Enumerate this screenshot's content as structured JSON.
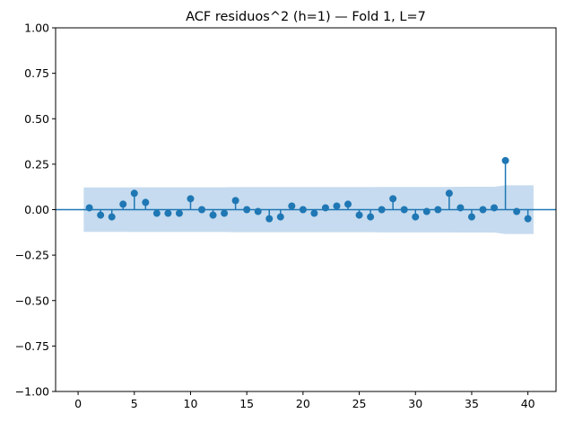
{
  "chart_data": {
    "type": "stem",
    "title": "ACF residuos^2 (h=1) — Fold 1, L=7",
    "xlabel": "",
    "ylabel": "",
    "xlim": [
      -2,
      42.5
    ],
    "ylim": [
      -1.0,
      1.0
    ],
    "xticks": [
      0,
      5,
      10,
      15,
      20,
      25,
      30,
      35,
      40
    ],
    "yticks": [
      -1.0,
      -0.75,
      -0.5,
      -0.25,
      0.0,
      0.25,
      0.5,
      0.75,
      1.0
    ],
    "ytick_labels": [
      "−1.00",
      "−0.75",
      "−0.50",
      "−0.25",
      "0.00",
      "0.25",
      "0.50",
      "0.75",
      "1.00"
    ],
    "grid": false,
    "lags": [
      1,
      2,
      3,
      4,
      5,
      6,
      7,
      8,
      9,
      10,
      11,
      12,
      13,
      14,
      15,
      16,
      17,
      18,
      19,
      20,
      21,
      22,
      23,
      24,
      25,
      26,
      27,
      28,
      29,
      30,
      31,
      32,
      33,
      34,
      35,
      36,
      37,
      38,
      39,
      40
    ],
    "values": [
      0.01,
      -0.03,
      -0.04,
      0.03,
      0.09,
      0.04,
      -0.02,
      -0.02,
      -0.02,
      0.06,
      0.0,
      -0.03,
      -0.02,
      0.05,
      0.0,
      -0.01,
      -0.05,
      -0.04,
      0.02,
      0.0,
      -0.02,
      0.01,
      0.02,
      0.03,
      -0.03,
      -0.04,
      0.0,
      0.06,
      0.0,
      -0.04,
      -0.01,
      0.0,
      0.09,
      0.01,
      -0.04,
      0.0,
      0.01,
      0.27,
      -0.01,
      -0.05
    ],
    "confidence_band": {
      "lags": [
        0.5,
        1,
        2,
        3,
        4,
        5,
        6,
        7,
        8,
        9,
        10,
        11,
        12,
        13,
        14,
        15,
        16,
        17,
        18,
        19,
        20,
        21,
        22,
        23,
        24,
        25,
        26,
        27,
        28,
        29,
        30,
        31,
        32,
        33,
        34,
        35,
        36,
        37,
        38,
        39,
        40,
        40.5
      ],
      "upper": [
        0.122,
        0.122,
        0.122,
        0.122,
        0.122,
        0.123,
        0.123,
        0.123,
        0.123,
        0.123,
        0.123,
        0.123,
        0.123,
        0.123,
        0.124,
        0.124,
        0.124,
        0.124,
        0.124,
        0.124,
        0.124,
        0.124,
        0.124,
        0.124,
        0.124,
        0.124,
        0.124,
        0.125,
        0.125,
        0.125,
        0.125,
        0.125,
        0.125,
        0.125,
        0.126,
        0.126,
        0.126,
        0.126,
        0.134,
        0.134,
        0.134,
        0.134
      ],
      "color": "#c6dbef"
    },
    "marker_color": "#1f77b4"
  }
}
